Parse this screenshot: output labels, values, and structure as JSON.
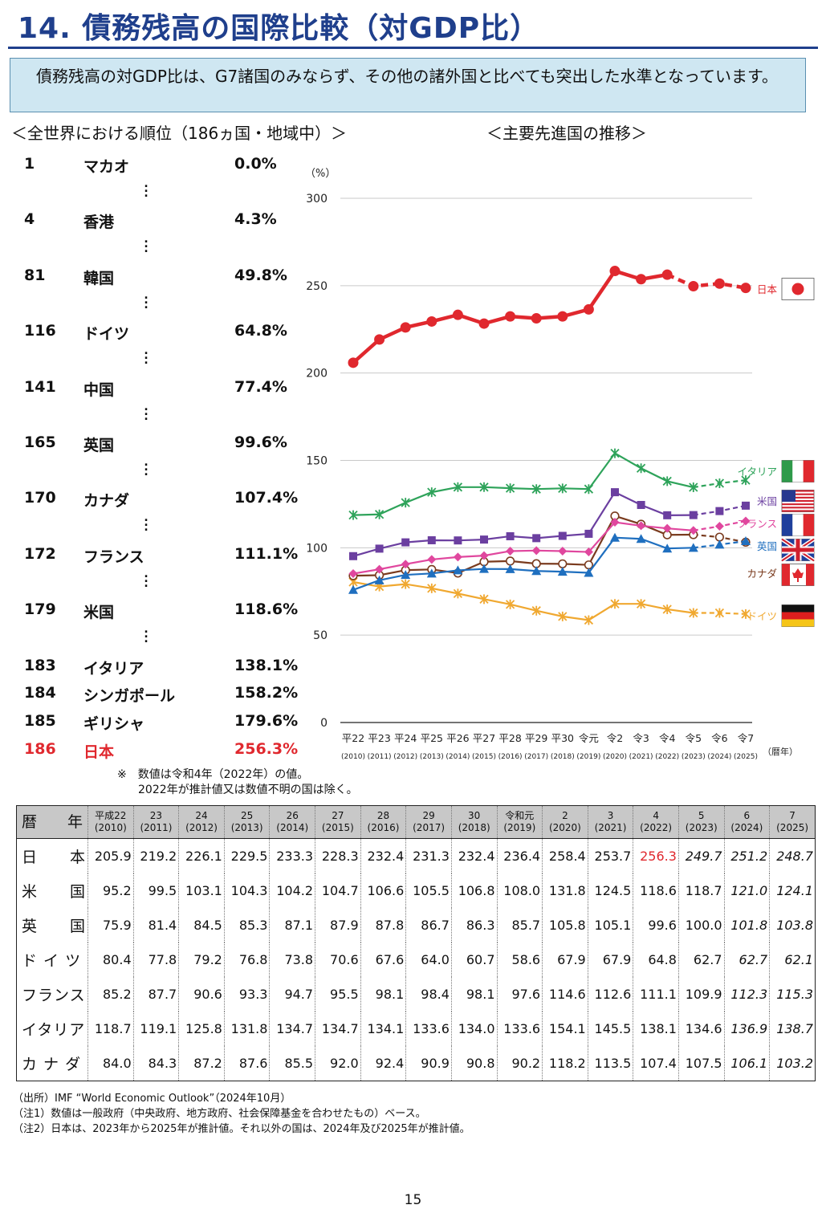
{
  "title": "14. 債務残高の国際比較（対GDP比）",
  "lead": "債務残高の対GDP比は、G7諸国のみならず、その他の諸外国と比べても突出した水準となっています。",
  "ranking": {
    "heading": "＜全世界における順位（186ヵ国・地域中）＞",
    "rows": [
      {
        "rank": "1",
        "name": "マカオ",
        "value": "0.0%"
      },
      {
        "rank": "4",
        "name": "香港",
        "value": "4.3%"
      },
      {
        "rank": "81",
        "name": "韓国",
        "value": "49.8%"
      },
      {
        "rank": "116",
        "name": "ドイツ",
        "value": "64.8%"
      },
      {
        "rank": "141",
        "name": "中国",
        "value": "77.4%"
      },
      {
        "rank": "165",
        "name": "英国",
        "value": "99.6%"
      },
      {
        "rank": "170",
        "name": "カナダ",
        "value": "107.4%"
      },
      {
        "rank": "172",
        "name": "フランス",
        "value": "111.1%"
      },
      {
        "rank": "179",
        "name": "米国",
        "value": "118.6%"
      },
      {
        "rank": "183",
        "name": "イタリア",
        "value": "138.1%"
      },
      {
        "rank": "184",
        "name": "シンガポール",
        "value": "158.2%"
      },
      {
        "rank": "185",
        "name": "ギリシャ",
        "value": "179.6%"
      },
      {
        "rank": "186",
        "name": "日本",
        "value": "256.3%"
      }
    ],
    "note1": "※　数値は令和4年（2022年）の値。",
    "note2": "2022年が推計値又は数値不明の国は除く。"
  },
  "chart_heading": "＜主要先進国の推移＞",
  "chart_data": {
    "type": "line",
    "ylabel": "（%）",
    "xlabel": "（暦年）",
    "ylim": [
      0,
      300
    ],
    "yticks": [
      0,
      50,
      100,
      150,
      200,
      250,
      300
    ],
    "grid": "horizontal",
    "categories": [
      "平22",
      "平23",
      "平24",
      "平25",
      "平26",
      "平27",
      "平28",
      "平29",
      "平30",
      "令元",
      "令2",
      "令3",
      "令4",
      "令5",
      "令6",
      "令7"
    ],
    "years": [
      "(2010)",
      "(2011)",
      "(2012)",
      "(2013)",
      "(2014)",
      "(2015)",
      "(2016)",
      "(2017)",
      "(2018)",
      "(2019)",
      "(2020)",
      "(2021)",
      "(2022)",
      "(2023)",
      "(2024)",
      "(2025)"
    ],
    "series": [
      {
        "name": "日本",
        "color": "#e0282e",
        "marker": "circle-large",
        "estimate_from_index": 12,
        "flag": "japan",
        "values": [
          205.9,
          219.2,
          226.1,
          229.5,
          233.3,
          228.3,
          232.4,
          231.3,
          232.4,
          236.4,
          258.4,
          253.7,
          256.3,
          249.7,
          251.2,
          248.7
        ]
      },
      {
        "name": "イタリア",
        "color": "#2ea35a",
        "marker": "x",
        "estimate_from_index": 13,
        "flag": "italy",
        "values": [
          118.7,
          119.1,
          125.8,
          131.8,
          134.7,
          134.7,
          134.1,
          133.6,
          134.0,
          133.6,
          154.1,
          145.5,
          138.1,
          134.6,
          136.9,
          138.7
        ]
      },
      {
        "name": "米国",
        "color": "#6b3fa0",
        "marker": "square",
        "estimate_from_index": 13,
        "flag": "usa",
        "values": [
          95.2,
          99.5,
          103.1,
          104.3,
          104.2,
          104.7,
          106.6,
          105.5,
          106.8,
          108.0,
          131.8,
          124.5,
          118.6,
          118.7,
          121.0,
          124.1
        ]
      },
      {
        "name": "フランス",
        "color": "#e0479e",
        "marker": "diamond",
        "estimate_from_index": 13,
        "flag": "france",
        "values": [
          85.2,
          87.7,
          90.6,
          93.3,
          94.7,
          95.5,
          98.1,
          98.4,
          98.1,
          97.6,
          114.6,
          112.6,
          111.1,
          109.9,
          112.3,
          115.3
        ]
      },
      {
        "name": "英国",
        "color": "#1f6fbf",
        "marker": "triangle",
        "estimate_from_index": 13,
        "flag": "uk",
        "values": [
          75.9,
          81.4,
          84.5,
          85.3,
          87.1,
          87.9,
          87.8,
          86.7,
          86.3,
          85.7,
          105.8,
          105.1,
          99.6,
          100.0,
          101.8,
          103.8
        ]
      },
      {
        "name": "カナダ",
        "color": "#7a3b1e",
        "marker": "open-circle",
        "estimate_from_index": 13,
        "flag": "canada",
        "values": [
          84.0,
          84.3,
          87.2,
          87.6,
          85.5,
          92.0,
          92.4,
          90.9,
          90.8,
          90.2,
          118.2,
          113.5,
          107.4,
          107.5,
          106.1,
          103.2
        ]
      },
      {
        "name": "ドイツ",
        "color": "#f0a830",
        "marker": "x",
        "estimate_from_index": 13,
        "flag": "germany",
        "values": [
          80.4,
          77.8,
          79.2,
          76.8,
          73.8,
          70.6,
          67.6,
          64.0,
          60.7,
          58.6,
          67.9,
          67.9,
          64.8,
          62.7,
          62.7,
          62.1
        ]
      }
    ]
  },
  "table": {
    "corner": "暦　　年",
    "headers": [
      {
        "era": "平成22",
        "year": "(2010)"
      },
      {
        "era": "23",
        "year": "(2011)"
      },
      {
        "era": "24",
        "year": "(2012)"
      },
      {
        "era": "25",
        "year": "(2013)"
      },
      {
        "era": "26",
        "year": "(2014)"
      },
      {
        "era": "27",
        "year": "(2015)"
      },
      {
        "era": "28",
        "year": "(2016)"
      },
      {
        "era": "29",
        "year": "(2017)"
      },
      {
        "era": "30",
        "year": "(2018)"
      },
      {
        "era": "令和元",
        "year": "(2019)"
      },
      {
        "era": "2",
        "year": "(2020)"
      },
      {
        "era": "3",
        "year": "(2021)"
      },
      {
        "era": "4",
        "year": "(2022)"
      },
      {
        "era": "5",
        "year": "(2023)"
      },
      {
        "era": "6",
        "year": "(2024)"
      },
      {
        "era": "7",
        "year": "(2025)"
      }
    ],
    "rows": [
      {
        "label": "日　　本",
        "est_from": 13,
        "red_index": 12,
        "values": [
          "205.9",
          "219.2",
          "226.1",
          "229.5",
          "233.3",
          "228.3",
          "232.4",
          "231.3",
          "232.4",
          "236.4",
          "258.4",
          "253.7",
          "256.3",
          "249.7",
          "251.2",
          "248.7"
        ]
      },
      {
        "label": "米　　国",
        "est_from": 14,
        "values": [
          "95.2",
          "99.5",
          "103.1",
          "104.3",
          "104.2",
          "104.7",
          "106.6",
          "105.5",
          "106.8",
          "108.0",
          "131.8",
          "124.5",
          "118.6",
          "118.7",
          "121.0",
          "124.1"
        ]
      },
      {
        "label": "英　　国",
        "est_from": 14,
        "values": [
          "75.9",
          "81.4",
          "84.5",
          "85.3",
          "87.1",
          "87.9",
          "87.8",
          "86.7",
          "86.3",
          "85.7",
          "105.8",
          "105.1",
          "99.6",
          "100.0",
          "101.8",
          "103.8"
        ]
      },
      {
        "label": "ド イ ツ",
        "est_from": 14,
        "values": [
          "80.4",
          "77.8",
          "79.2",
          "76.8",
          "73.8",
          "70.6",
          "67.6",
          "64.0",
          "60.7",
          "58.6",
          "67.9",
          "67.9",
          "64.8",
          "62.7",
          "62.7",
          "62.1"
        ]
      },
      {
        "label": "フランス",
        "est_from": 14,
        "values": [
          "85.2",
          "87.7",
          "90.6",
          "93.3",
          "94.7",
          "95.5",
          "98.1",
          "98.4",
          "98.1",
          "97.6",
          "114.6",
          "112.6",
          "111.1",
          "109.9",
          "112.3",
          "115.3"
        ]
      },
      {
        "label": "イタリア",
        "est_from": 14,
        "values": [
          "118.7",
          "119.1",
          "125.8",
          "131.8",
          "134.7",
          "134.7",
          "134.1",
          "133.6",
          "134.0",
          "133.6",
          "154.1",
          "145.5",
          "138.1",
          "134.6",
          "136.9",
          "138.7"
        ]
      },
      {
        "label": "カ ナ ダ",
        "est_from": 14,
        "values": [
          "84.0",
          "84.3",
          "87.2",
          "87.6",
          "85.5",
          "92.0",
          "92.4",
          "90.9",
          "90.8",
          "90.2",
          "118.2",
          "113.5",
          "107.4",
          "107.5",
          "106.1",
          "103.2"
        ]
      }
    ]
  },
  "sources": [
    "（出所）IMF “World Economic Outlook”（2024年10月）",
    "（注1）数値は一般政府（中央政府、地方政府、社会保障基金を合わせたもの）ベース。",
    "（注2）日本は、2023年から2025年が推計値。それ以外の国は、2024年及び2025年が推計値。"
  ],
  "page_number": "15"
}
